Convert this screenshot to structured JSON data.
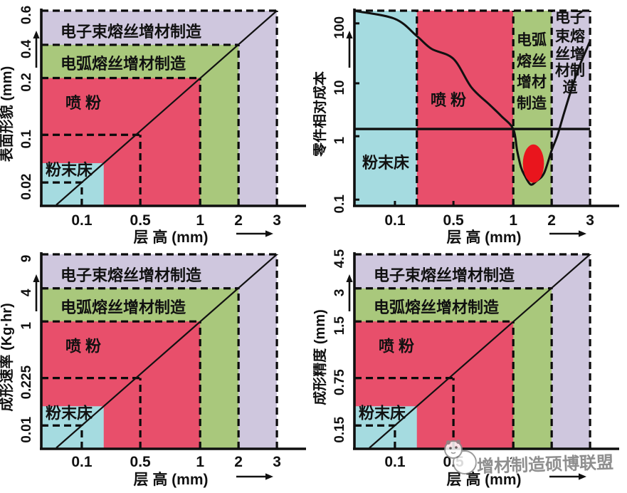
{
  "watermark": {
    "text": "增材制造硕博联盟",
    "logo": "mascot-logo"
  },
  "colors": {
    "powder_bed": "#a5dbe0",
    "blown_powder": "#e84f6b",
    "arc_wire": "#a9c87c",
    "ebeam_wire": "#cfc7de",
    "highlight_ellipse": "#e9151d",
    "line": "#111111",
    "watermark_gray": "#8f8f8f"
  },
  "chart_data": [
    {
      "id": "surface-morphology",
      "type": "area",
      "position": "top-left",
      "x_label": "层 高 (mm)",
      "y_label": "表面形貌 (mm)",
      "x_ticks": [
        0.1,
        0.5,
        1,
        2,
        3
      ],
      "y_ticks": [
        0.02,
        0.1,
        0.2,
        0.4,
        0.6
      ],
      "scale": "schematic-linear",
      "diagonal_points": [
        [
          0.1,
          0.02
        ],
        [
          0.5,
          0.1
        ],
        [
          1,
          0.2
        ],
        [
          2,
          0.4
        ],
        [
          3,
          0.6
        ]
      ],
      "regions": [
        {
          "name": "粉末床",
          "key": "powder_bed",
          "x_max": 0.25
        },
        {
          "name": "喷 粉",
          "key": "blown_powder",
          "x_max": 1,
          "y_max": 0.2
        },
        {
          "name": "电弧熔丝增材制造",
          "key": "arc_wire",
          "x_max": 2,
          "y_max": 0.4
        },
        {
          "name": "电子束熔丝增材制造",
          "key": "ebeam_wire",
          "x_max": 3,
          "y_max": 0.6
        }
      ]
    },
    {
      "id": "relative-cost",
      "type": "area-bands+curve",
      "position": "top-right",
      "x_label": "层 高 (mm)",
      "y_label": "零件相对成本",
      "x_ticks": [
        0.1,
        0.5,
        1,
        2,
        3
      ],
      "y_ticks": [
        0.1,
        1,
        10,
        100
      ],
      "y_scale": "log",
      "baseline_y": 1,
      "bands": [
        {
          "name": "粉末床",
          "key": "powder_bed",
          "x_range": [
            0,
            0.25
          ],
          "label_lines": [
            "粉末床"
          ]
        },
        {
          "name": "喷 粉",
          "key": "blown_powder",
          "x_range": [
            0.25,
            1
          ],
          "label_lines": [
            "喷 粉"
          ]
        },
        {
          "name": "电弧熔丝增材制造",
          "key": "arc_wire",
          "x_range": [
            1,
            2
          ],
          "label_lines": [
            "电弧",
            "熔丝",
            "增材",
            "制造"
          ]
        },
        {
          "name": "电子束熔丝增材制造",
          "key": "ebeam_wire",
          "x_range": [
            2,
            3
          ],
          "label_lines": [
            "电子",
            "束熔",
            "丝增",
            "材制",
            "造"
          ]
        }
      ],
      "cost_curve": [
        [
          0.005,
          150
        ],
        [
          0.1,
          110
        ],
        [
          0.25,
          55
        ],
        [
          0.35,
          33
        ],
        [
          0.5,
          22
        ],
        [
          0.65,
          7
        ],
        [
          0.8,
          3.5
        ],
        [
          0.9,
          2.2
        ],
        [
          1.0,
          1.3
        ],
        [
          1.1,
          0.55
        ],
        [
          1.2,
          0.28
        ],
        [
          1.3,
          0.2
        ],
        [
          1.45,
          0.14
        ],
        [
          1.6,
          0.16
        ],
        [
          1.8,
          0.22
        ],
        [
          2.0,
          0.55
        ],
        [
          2.15,
          1.0
        ],
        [
          2.3,
          2.2
        ],
        [
          2.5,
          6
        ],
        [
          2.7,
          15
        ],
        [
          3.0,
          45
        ]
      ],
      "sweet_spot_ellipse": {
        "x_range": [
          1.25,
          1.8
        ],
        "y_range": [
          0.15,
          0.7
        ]
      }
    },
    {
      "id": "build-rate",
      "type": "area",
      "position": "bottom-left",
      "x_label": "层 高 (mm)",
      "y_label": "成形速率 (Kg·hr)",
      "x_ticks": [
        0.1,
        0.5,
        1,
        2,
        3
      ],
      "y_ticks": [
        0.01,
        0.225,
        1,
        4,
        9
      ],
      "scale": "schematic-linear",
      "diagonal_points": [
        [
          0.1,
          0.01
        ],
        [
          0.5,
          0.225
        ],
        [
          1,
          1
        ],
        [
          2,
          4
        ],
        [
          3,
          9
        ]
      ],
      "regions": [
        {
          "name": "粉末床",
          "key": "powder_bed",
          "x_max": 0.25
        },
        {
          "name": "喷 粉",
          "key": "blown_powder",
          "x_max": 1,
          "y_max": 1
        },
        {
          "name": "电弧熔丝增材制造",
          "key": "arc_wire",
          "x_max": 2,
          "y_max": 4
        },
        {
          "name": "电子束熔丝增材制造",
          "key": "ebeam_wire",
          "x_max": 3,
          "y_max": 9
        }
      ]
    },
    {
      "id": "forming-accuracy",
      "type": "area",
      "position": "bottom-right",
      "x_label": "层 高 (mm)",
      "y_label": "成形精度 (mm)",
      "x_ticks": [
        0.1,
        0.5,
        1,
        2,
        3
      ],
      "y_ticks": [
        0.15,
        0.75,
        1.5,
        3,
        4.5
      ],
      "scale": "schematic-linear",
      "diagonal_points": [
        [
          0.1,
          0.15
        ],
        [
          0.5,
          0.75
        ],
        [
          1,
          1.5
        ],
        [
          2,
          3
        ],
        [
          3,
          4.5
        ]
      ],
      "regions": [
        {
          "name": "粉末床",
          "key": "powder_bed",
          "x_max": 0.25
        },
        {
          "name": "喷 粉",
          "key": "blown_powder",
          "x_max": 1,
          "y_max": 1.5
        },
        {
          "name": "电弧熔丝增材制造",
          "key": "arc_wire",
          "x_max": 2,
          "y_max": 3
        },
        {
          "name": "电子束熔丝增材制造",
          "key": "ebeam_wire",
          "x_max": 3,
          "y_max": 4.5
        }
      ]
    }
  ]
}
